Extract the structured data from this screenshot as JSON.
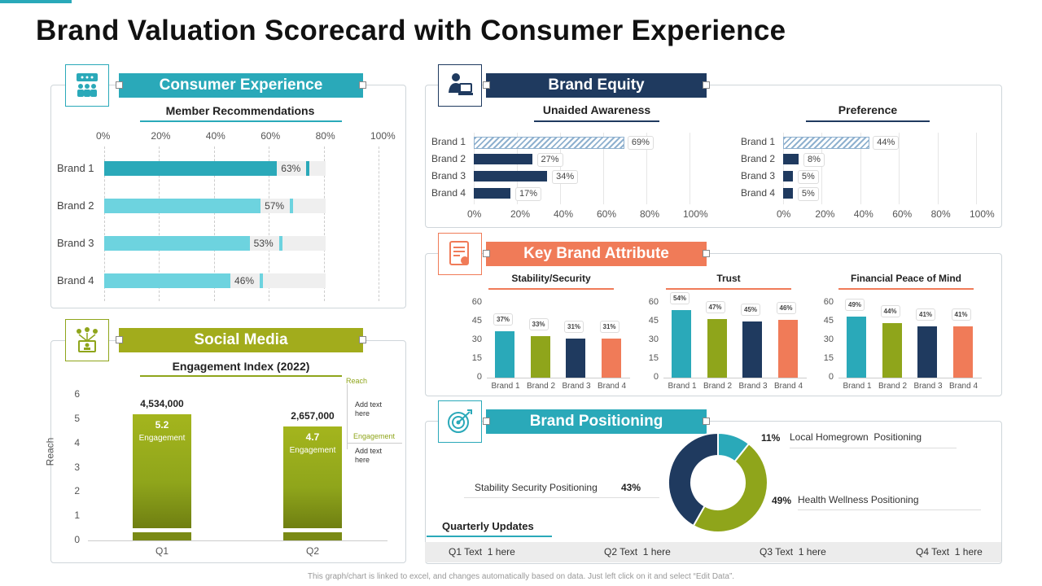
{
  "page_title": "Brand Valuation Scorecard with Consumer Experience",
  "footer_note": "This graph/chart is linked to excel, and changes automatically based on data. Just left click on it and select “Edit Data”.",
  "colors": {
    "teal": "#2aa9b9",
    "navy": "#1f3a5f",
    "olive": "#8fa51b",
    "orange": "#f07b58",
    "light_teal": "#6dd3df"
  },
  "sections": {
    "consumer_experience": {
      "title": "Consumer Experience",
      "icon": "people-chat-icon"
    },
    "brand_equity": {
      "title": "Brand Equity",
      "icon": "person-computer-icon"
    },
    "social_media": {
      "title": "Social Media",
      "icon": "network-people-icon"
    },
    "key_brand_attribute": {
      "title": "Key Brand Attribute",
      "icon": "certificate-icon"
    },
    "brand_positioning": {
      "title": "Brand Positioning",
      "icon": "target-icon"
    }
  },
  "chart_data": [
    {
      "id": "member_recommendations",
      "type": "bar",
      "orientation": "horizontal",
      "title": "Member Recommendations",
      "categories": [
        "Brand 1",
        "Brand 2",
        "Brand 3",
        "Brand 4"
      ],
      "values": [
        63,
        57,
        53,
        46
      ],
      "value_labels": [
        "63%",
        "57%",
        "53%",
        "46%"
      ],
      "x_ticks": [
        "0%",
        "20%",
        "40%",
        "60%",
        "80%",
        "100%"
      ],
      "xlim": [
        0,
        100
      ]
    },
    {
      "id": "unaided_awareness",
      "type": "bar",
      "orientation": "horizontal",
      "title": "Unaided Awareness",
      "categories": [
        "Brand 1",
        "Brand 2",
        "Brand 3",
        "Brand 4"
      ],
      "values": [
        69,
        27,
        34,
        17
      ],
      "value_labels": [
        "69%",
        "27%",
        "34%",
        "17%"
      ],
      "x_ticks": [
        "0%",
        "20%",
        "40%",
        "60%",
        "80%",
        "100%"
      ],
      "xlim": [
        0,
        100
      ]
    },
    {
      "id": "preference",
      "type": "bar",
      "orientation": "horizontal",
      "title": "Preference",
      "categories": [
        "Brand 1",
        "Brand 2",
        "Brand 3",
        "Brand 4"
      ],
      "values": [
        44,
        8,
        5,
        5
      ],
      "value_labels": [
        "44%",
        "8%",
        "5%",
        "5%"
      ],
      "x_ticks": [
        "0%",
        "20%",
        "40%",
        "60%",
        "80%",
        "100%"
      ],
      "xlim": [
        0,
        100
      ]
    },
    {
      "id": "stability_security",
      "type": "bar",
      "title": "Stability/Security",
      "categories": [
        "Brand 1",
        "Brand 2",
        "Brand 3",
        "Brand 4"
      ],
      "values": [
        37,
        33,
        31,
        31
      ],
      "value_labels": [
        "37%",
        "33%",
        "31%",
        "31%"
      ],
      "y_ticks": [
        "0",
        "15",
        "30",
        "45",
        "60"
      ],
      "ylim": [
        0,
        60
      ]
    },
    {
      "id": "trust",
      "type": "bar",
      "title": "Trust",
      "categories": [
        "Brand 1",
        "Brand 2",
        "Brand 3",
        "Brand 4"
      ],
      "values": [
        54,
        47,
        45,
        46
      ],
      "value_labels": [
        "54%",
        "47%",
        "45%",
        "46%"
      ],
      "y_ticks": [
        "0",
        "15",
        "30",
        "45",
        "60"
      ],
      "ylim": [
        0,
        60
      ]
    },
    {
      "id": "financial_peace",
      "type": "bar",
      "title": "Financial Peace of Mind",
      "categories": [
        "Brand 1",
        "Brand 2",
        "Brand 3",
        "Brand 4"
      ],
      "values": [
        49,
        44,
        41,
        41
      ],
      "value_labels": [
        "49%",
        "44%",
        "41%",
        "41%"
      ],
      "y_ticks": [
        "0",
        "15",
        "30",
        "45",
        "60"
      ],
      "ylim": [
        0,
        60
      ]
    },
    {
      "id": "engagement_index",
      "type": "bar",
      "title": "Engagement Index (2022)",
      "ylabel": "Reach",
      "categories": [
        "Q1",
        "Q2"
      ],
      "values": [
        5.2,
        4.7
      ],
      "value_labels": [
        "5.2",
        "4.7"
      ],
      "bar_sublabel": "Engagement",
      "reach_labels": [
        "4,534,000",
        "2,657,000"
      ],
      "y_ticks": [
        "0",
        "1",
        "2",
        "3",
        "4",
        "5",
        "6"
      ],
      "ylim": [
        0,
        6
      ],
      "legend": [
        {
          "name": "Reach",
          "text": "Add text here"
        },
        {
          "name": "Engagement",
          "text": "Add text here"
        }
      ]
    },
    {
      "id": "brand_positioning",
      "type": "pie",
      "donut": true,
      "labels": [
        "Local Homegrown  Positioning",
        "Health Wellness Positioning",
        "Stability Security Positioning"
      ],
      "values": [
        11,
        49,
        43
      ],
      "value_labels": [
        "11%",
        "49%",
        "43%"
      ],
      "colors": [
        "#2aa9b9",
        "#8fa51b",
        "#1f3a5f"
      ]
    }
  ],
  "quarterly_updates": {
    "title": "Quarterly Updates",
    "items": [
      "Q1 Text  1 here",
      "Q2 Text  1 here",
      "Q3 Text  1 here",
      "Q4 Text  1 here"
    ]
  }
}
